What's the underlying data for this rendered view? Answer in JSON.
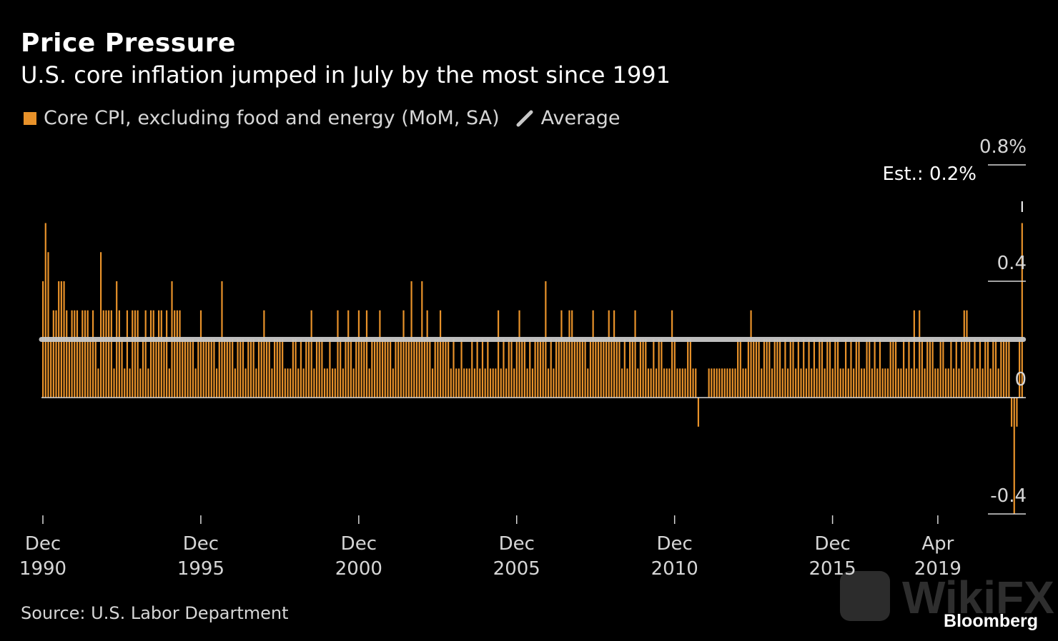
{
  "header": {
    "title": "Price Pressure",
    "subtitle": "U.S. core inflation jumped in July by the most since 1991"
  },
  "legend": {
    "series_label": "Core CPI, excluding food and energy (MoM, SA)",
    "average_label": "Average"
  },
  "footer": {
    "source": "Source: U.S. Labor Department",
    "brand": "Bloomberg",
    "watermark": "WikiFX"
  },
  "colors": {
    "bar": "#e8922a",
    "average": "#c8c8c8",
    "background": "#000000",
    "axis_text": "#d6d6d6"
  },
  "chart_data": {
    "type": "bar",
    "title": "Price Pressure",
    "subtitle": "U.S. core inflation jumped in July by the most since 1991",
    "xlabel": "",
    "ylabel": "",
    "start_month": "1990-12",
    "end_month": "2020-07",
    "ylim": [
      -0.45,
      0.85
    ],
    "yticks": [
      {
        "value": 0.8,
        "label": "0.8%"
      },
      {
        "value": 0.4,
        "label": "0.4"
      },
      {
        "value": 0,
        "label": "0"
      },
      {
        "value": -0.4,
        "label": "-0.4"
      }
    ],
    "xticks": [
      {
        "month": "1990-12",
        "line1": "Dec",
        "line2": "1990"
      },
      {
        "month": "1995-12",
        "line1": "Dec",
        "line2": "1995"
      },
      {
        "month": "2000-12",
        "line1": "Dec",
        "line2": "2000"
      },
      {
        "month": "2005-12",
        "line1": "Dec",
        "line2": "2005"
      },
      {
        "month": "2010-12",
        "line1": "Dec",
        "line2": "2010"
      },
      {
        "month": "2015-12",
        "line1": "Dec",
        "line2": "2015"
      },
      {
        "month": "2019-04",
        "line1": "Apr",
        "line2": "2019"
      }
    ],
    "grid": false,
    "legend_position": "top-left",
    "average": 0.2,
    "estimate": {
      "label": "Est.: 0.2%",
      "value": 0.2
    },
    "series": [
      {
        "name": "Core CPI, excluding food and energy (MoM, SA)",
        "values": [
          0.4,
          0.6,
          0.5,
          0.2,
          0.3,
          0.3,
          0.4,
          0.4,
          0.4,
          0.3,
          0.2,
          0.3,
          0.3,
          0.3,
          0.2,
          0.3,
          0.3,
          0.3,
          0.2,
          0.3,
          0.2,
          0.1,
          0.5,
          0.3,
          0.3,
          0.3,
          0.3,
          0.1,
          0.4,
          0.3,
          0.2,
          0.1,
          0.3,
          0.1,
          0.3,
          0.3,
          0.3,
          0.1,
          0.2,
          0.3,
          0.1,
          0.3,
          0.3,
          0.2,
          0.3,
          0.3,
          0.2,
          0.3,
          0.1,
          0.4,
          0.3,
          0.3,
          0.3,
          0.2,
          0.2,
          0.2,
          0.2,
          0.2,
          0.1,
          0.2,
          0.3,
          0.2,
          0.2,
          0.2,
          0.2,
          0.2,
          0.1,
          0.2,
          0.4,
          0.2,
          0.2,
          0.2,
          0.2,
          0.1,
          0.2,
          0.2,
          0.2,
          0.1,
          0.2,
          0.2,
          0.2,
          0.1,
          0.2,
          0.2,
          0.3,
          0.2,
          0.2,
          0.1,
          0.2,
          0.2,
          0.2,
          0.2,
          0.1,
          0.1,
          0.1,
          0.2,
          0.2,
          0.1,
          0.2,
          0.1,
          0.2,
          0.2,
          0.3,
          0.1,
          0.2,
          0.2,
          0.2,
          0.1,
          0.1,
          0.2,
          0.1,
          0.1,
          0.3,
          0.2,
          0.1,
          0.2,
          0.3,
          0.2,
          0.1,
          0.2,
          0.3,
          0.2,
          0.2,
          0.3,
          0.1,
          0.2,
          0.2,
          0.2,
          0.3,
          0.2,
          0.2,
          0.2,
          0.2,
          0.1,
          0.2,
          0.2,
          0.2,
          0.3,
          0.2,
          0.2,
          0.4,
          0.2,
          0.2,
          0.2,
          0.4,
          0.2,
          0.3,
          0.2,
          0.1,
          0.2,
          0.2,
          0.3,
          0.2,
          0.2,
          0.2,
          0.1,
          0.2,
          0.1,
          0.1,
          0.2,
          0.1,
          0.1,
          0.1,
          0.2,
          0.1,
          0.2,
          0.1,
          0.2,
          0.1,
          0.2,
          0.1,
          0.1,
          0.1,
          0.3,
          0.1,
          0.2,
          0.1,
          0.2,
          0.2,
          0.1,
          0.2,
          0.3,
          0.2,
          0.2,
          0.1,
          0.2,
          0.1,
          0.2,
          0.2,
          0.2,
          0.2,
          0.4,
          0.1,
          0.2,
          0.1,
          0.2,
          0.2,
          0.3,
          0.2,
          0.2,
          0.3,
          0.3,
          0.2,
          0.2,
          0.2,
          0.2,
          0.2,
          0.1,
          0.2,
          0.3,
          0.2,
          0.2,
          0.2,
          0.2,
          0.2,
          0.3,
          0.2,
          0.3,
          0.2,
          0.2,
          0.1,
          0.2,
          0.1,
          0.2,
          0.2,
          0.3,
          0.1,
          0.2,
          0.2,
          0.2,
          0.1,
          0.1,
          0.2,
          0.1,
          0.2,
          0.2,
          0.1,
          0.1,
          0.1,
          0.3,
          0.2,
          0.1,
          0.1,
          0.1,
          0.1,
          0.2,
          0.2,
          0.1,
          0.1,
          -0.1,
          0.0,
          0.0,
          0.0,
          0.1,
          0.1,
          0.1,
          0.1,
          0.1,
          0.1,
          0.1,
          0.1,
          0.1,
          0.1,
          0.1,
          0.2,
          0.2,
          0.1,
          0.1,
          0.2,
          0.3,
          0.2,
          0.2,
          0.2,
          0.1,
          0.2,
          0.2,
          0.2,
          0.1,
          0.2,
          0.2,
          0.2,
          0.1,
          0.2,
          0.1,
          0.2,
          0.2,
          0.1,
          0.2,
          0.1,
          0.2,
          0.1,
          0.2,
          0.1,
          0.2,
          0.1,
          0.2,
          0.2,
          0.1,
          0.2,
          0.2,
          0.1,
          0.2,
          0.2,
          0.1,
          0.1,
          0.2,
          0.1,
          0.2,
          0.1,
          0.2,
          0.2,
          0.1,
          0.1,
          0.2,
          0.2,
          0.1,
          0.2,
          0.1,
          0.2,
          0.1,
          0.1,
          0.1,
          0.2,
          0.2,
          0.2,
          0.1,
          0.1,
          0.2,
          0.1,
          0.2,
          0.1,
          0.3,
          0.1,
          0.3,
          0.2,
          0.1,
          0.2,
          0.2,
          0.2,
          0.1,
          0.1,
          0.2,
          0.2,
          0.1,
          0.1,
          0.2,
          0.1,
          0.2,
          0.1,
          0.2,
          0.3,
          0.3,
          0.2,
          0.1,
          0.2,
          0.1,
          0.2,
          0.1,
          0.2,
          0.2,
          0.1,
          0.2,
          0.2,
          0.1,
          0.2,
          0.2,
          0.2,
          0.2,
          -0.1,
          -0.4,
          -0.1,
          0.2,
          0.6
        ]
      }
    ]
  }
}
